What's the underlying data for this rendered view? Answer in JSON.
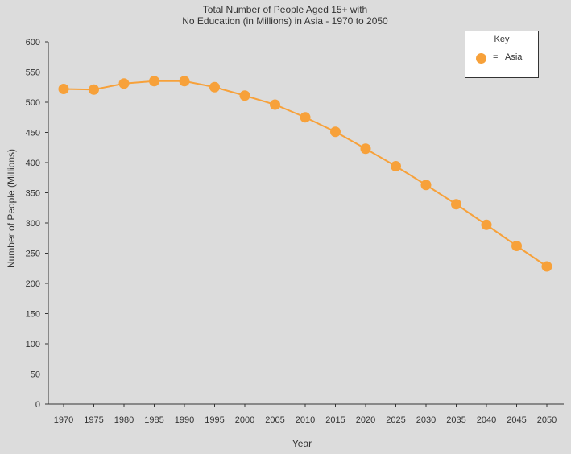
{
  "chart_data": {
    "type": "line",
    "title": "Total Number of People Aged 15+ with",
    "subtitle": "No Education (in Millions) in Asia - 1970 to 2050",
    "xlabel": "Year",
    "ylabel": "Number of People (Millions)",
    "ylim": [
      0,
      600
    ],
    "yticks": [
      0,
      50,
      100,
      150,
      200,
      250,
      300,
      350,
      400,
      450,
      500,
      550,
      600
    ],
    "categories": [
      "1970",
      "1975",
      "1980",
      "1985",
      "1990",
      "1995",
      "2000",
      "2005",
      "2010",
      "2015",
      "2020",
      "2025",
      "2030",
      "2035",
      "2040",
      "2045",
      "2050"
    ],
    "series": [
      {
        "name": "Asia",
        "color": "#f7a13a",
        "values": [
          522,
          521,
          531,
          535,
          535,
          525,
          511,
          496,
          475,
          451,
          423,
          394,
          363,
          331,
          297,
          262,
          228
        ]
      }
    ],
    "grid": false,
    "legend": {
      "title": "Key",
      "separator": "=",
      "placement": "top-right"
    }
  }
}
